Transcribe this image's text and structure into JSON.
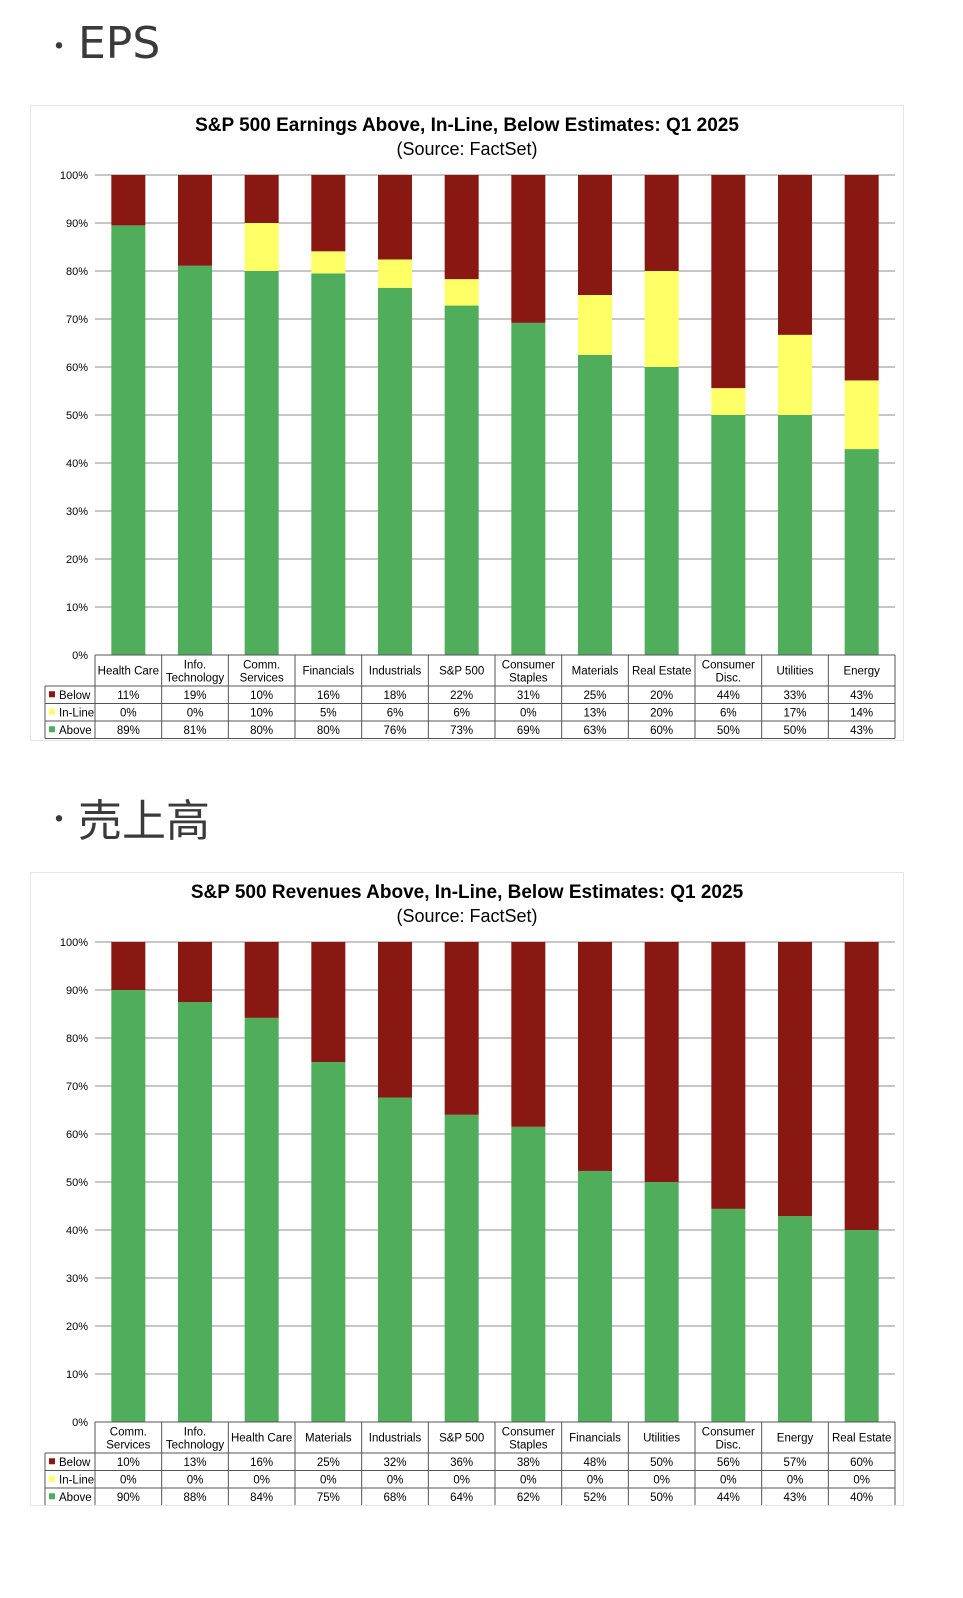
{
  "sections": [
    {
      "bullet": "・",
      "heading": "EPS"
    },
    {
      "bullet": "・",
      "heading": "売上高"
    }
  ],
  "colors": {
    "Below": "#891812",
    "In-Line": "#ffff66",
    "Above": "#4fad5b"
  },
  "chart_data": [
    {
      "type": "bar",
      "stacked": true,
      "title": "S&P 500 Earnings Above, In-Line, Below Estimates: Q1 2025",
      "subtitle": "(Source: FactSet)",
      "ylim": [
        0,
        100
      ],
      "yticks": [
        "0%",
        "10%",
        "20%",
        "30%",
        "40%",
        "50%",
        "60%",
        "70%",
        "80%",
        "90%",
        "100%"
      ],
      "grid": true,
      "legend": "data-table-left",
      "categories": [
        [
          "Health Care"
        ],
        [
          "Info.",
          "Technology"
        ],
        [
          "Comm.",
          "Services"
        ],
        [
          "Financials"
        ],
        [
          "Industrials"
        ],
        [
          "S&P 500"
        ],
        [
          "Consumer",
          "Staples"
        ],
        [
          "Materials"
        ],
        [
          "Real Estate"
        ],
        [
          "Consumer",
          "Disc."
        ],
        [
          "Utilities"
        ],
        [
          "Energy"
        ]
      ],
      "series": [
        {
          "name": "Below",
          "values": [
            11,
            19,
            10,
            16,
            18,
            22,
            31,
            25,
            20,
            44,
            33,
            43
          ]
        },
        {
          "name": "In-Line",
          "values": [
            0,
            0,
            10,
            5,
            6,
            6,
            0,
            13,
            20,
            6,
            17,
            14
          ]
        },
        {
          "name": "Above",
          "values": [
            89,
            81,
            80,
            80,
            76,
            73,
            69,
            63,
            60,
            50,
            50,
            43
          ]
        }
      ],
      "bars": [
        {
          "above": 89.5,
          "inline": 0,
          "below": 10.5
        },
        {
          "above": 81.1,
          "inline": 0,
          "below": 18.9
        },
        {
          "above": 80,
          "inline": 10,
          "below": 10
        },
        {
          "above": 79.5,
          "inline": 4.6,
          "below": 15.9
        },
        {
          "above": 76.5,
          "inline": 5.9,
          "below": 17.6
        },
        {
          "above": 72.8,
          "inline": 5.5,
          "below": 21.7
        },
        {
          "above": 69.2,
          "inline": 0,
          "below": 30.8
        },
        {
          "above": 62.5,
          "inline": 12.5,
          "below": 25
        },
        {
          "above": 60,
          "inline": 20,
          "below": 20
        },
        {
          "above": 50,
          "inline": 5.6,
          "below": 44.4
        },
        {
          "above": 50,
          "inline": 16.7,
          "below": 33.3
        },
        {
          "above": 42.9,
          "inline": 14.3,
          "below": 42.8
        }
      ],
      "table": [
        {
          "label": "Below",
          "cells": [
            "11%",
            "19%",
            "10%",
            "16%",
            "18%",
            "22%",
            "31%",
            "25%",
            "20%",
            "44%",
            "33%",
            "43%"
          ]
        },
        {
          "label": "In-Line",
          "cells": [
            "0%",
            "0%",
            "10%",
            "5%",
            "6%",
            "6%",
            "0%",
            "13%",
            "20%",
            "6%",
            "17%",
            "14%"
          ]
        },
        {
          "label": "Above",
          "cells": [
            "89%",
            "81%",
            "80%",
            "80%",
            "76%",
            "73%",
            "69%",
            "63%",
            "60%",
            "50%",
            "50%",
            "43%"
          ]
        }
      ]
    },
    {
      "type": "bar",
      "stacked": true,
      "title": "S&P 500 Revenues Above, In-Line, Below Estimates: Q1 2025",
      "subtitle": "(Source: FactSet)",
      "ylim": [
        0,
        100
      ],
      "yticks": [
        "0%",
        "10%",
        "20%",
        "30%",
        "40%",
        "50%",
        "60%",
        "70%",
        "80%",
        "90%",
        "100%"
      ],
      "grid": true,
      "legend": "data-table-left",
      "categories": [
        [
          "Comm.",
          "Services"
        ],
        [
          "Info.",
          "Technology"
        ],
        [
          "Health Care"
        ],
        [
          "Materials"
        ],
        [
          "Industrials"
        ],
        [
          "S&P 500"
        ],
        [
          "Consumer",
          "Staples"
        ],
        [
          "Financials"
        ],
        [
          "Utilities"
        ],
        [
          "Consumer",
          "Disc."
        ],
        [
          "Energy"
        ],
        [
          "Real Estate"
        ]
      ],
      "series": [
        {
          "name": "Below",
          "values": [
            10,
            13,
            16,
            25,
            32,
            36,
            38,
            48,
            50,
            56,
            57,
            60
          ]
        },
        {
          "name": "In-Line",
          "values": [
            0,
            0,
            0,
            0,
            0,
            0,
            0,
            0,
            0,
            0,
            0,
            0
          ]
        },
        {
          "name": "Above",
          "values": [
            90,
            88,
            84,
            75,
            68,
            64,
            62,
            52,
            50,
            44,
            43,
            40
          ]
        }
      ],
      "bars": [
        {
          "above": 90,
          "inline": 0,
          "below": 10
        },
        {
          "above": 87.5,
          "inline": 0,
          "below": 12.5
        },
        {
          "above": 84.2,
          "inline": 0,
          "below": 15.8
        },
        {
          "above": 75,
          "inline": 0,
          "below": 25
        },
        {
          "above": 67.6,
          "inline": 0,
          "below": 32.4
        },
        {
          "above": 64,
          "inline": 0,
          "below": 36
        },
        {
          "above": 61.5,
          "inline": 0,
          "below": 38.5
        },
        {
          "above": 52.3,
          "inline": 0,
          "below": 47.7
        },
        {
          "above": 50,
          "inline": 0,
          "below": 50
        },
        {
          "above": 44.4,
          "inline": 0,
          "below": 55.6
        },
        {
          "above": 42.9,
          "inline": 0,
          "below": 57.1
        },
        {
          "above": 40,
          "inline": 0,
          "below": 60
        }
      ],
      "table": [
        {
          "label": "Below",
          "cells": [
            "10%",
            "13%",
            "16%",
            "25%",
            "32%",
            "36%",
            "38%",
            "48%",
            "50%",
            "56%",
            "57%",
            "60%"
          ]
        },
        {
          "label": "In-Line",
          "cells": [
            "0%",
            "0%",
            "0%",
            "0%",
            "0%",
            "0%",
            "0%",
            "0%",
            "0%",
            "0%",
            "0%",
            "0%"
          ]
        },
        {
          "label": "Above",
          "cells": [
            "90%",
            "88%",
            "84%",
            "75%",
            "68%",
            "64%",
            "62%",
            "52%",
            "50%",
            "44%",
            "43%",
            "40%"
          ]
        }
      ]
    }
  ]
}
